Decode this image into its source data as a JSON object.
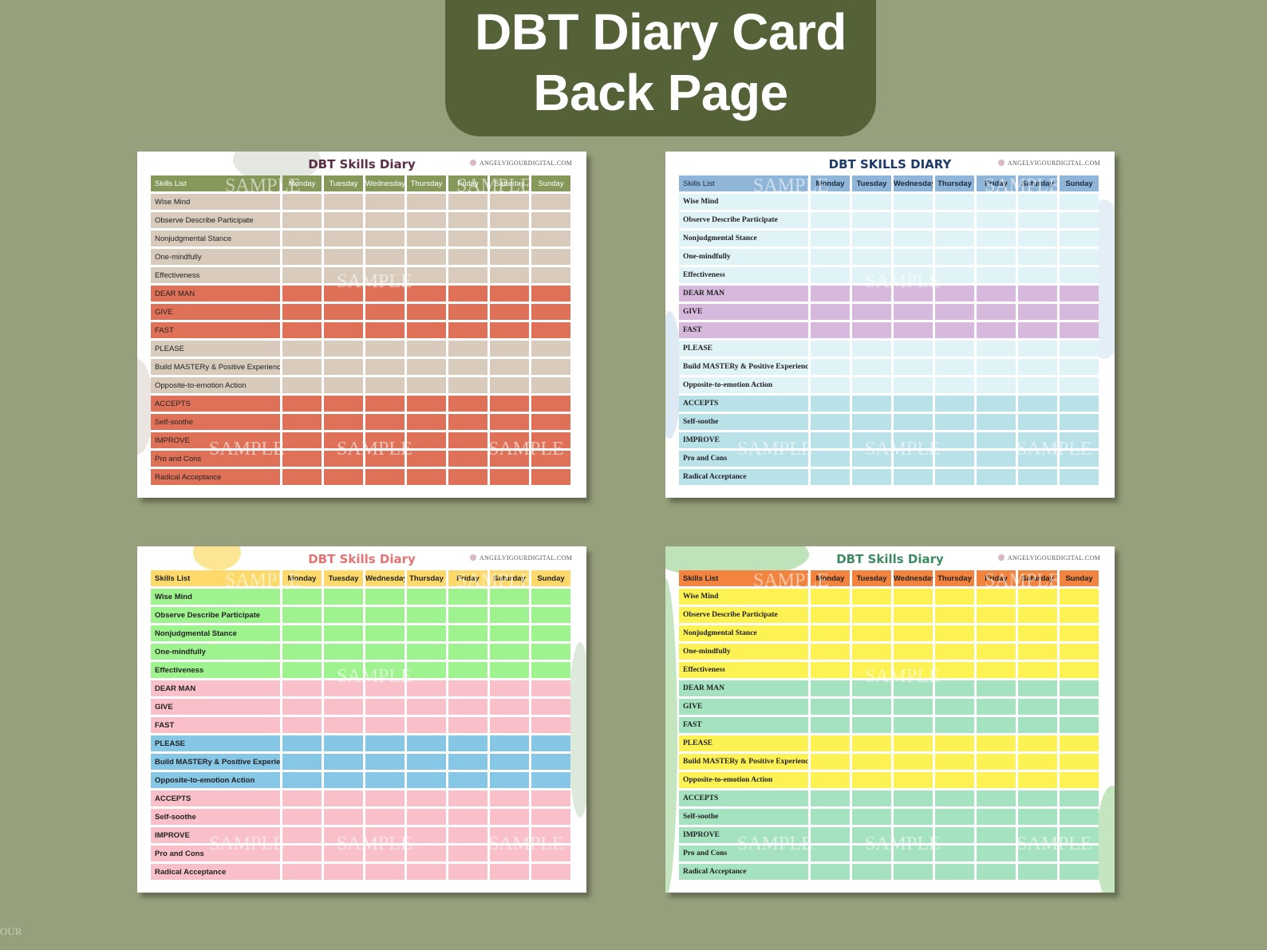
{
  "banner": {
    "line1": "DBT Diary Card",
    "line2": "Back Page"
  },
  "corner_text": "OUR",
  "days": [
    "Monday",
    "Tuesday",
    "Wednesday",
    "Thursday",
    "Friday",
    "Saturday",
    "Sunday"
  ],
  "skills_header": "Skills List",
  "skills": [
    "Wise Mind",
    "Observe    Describe    Participate",
    "Nonjudgmental Stance",
    "One-mindfully",
    "Effectiveness",
    "DEAR MAN",
    "GIVE",
    "FAST",
    "PLEASE",
    "Build MASTERy & Positive Experiences",
    "Opposite-to-emotion Action",
    "ACCEPTS",
    "Self-soothe",
    "IMPROVE",
    "Pro and Cons",
    "Radical Acceptance"
  ],
  "cards": [
    {
      "title": "DBT Skills Diary",
      "site": "ANGELVIGOURDIGITAL.COM",
      "title_color": "#5a2f45",
      "header_color": "#86995a",
      "header_text_color": "#ffffff",
      "group_colors": [
        "#d9cbbb",
        "#de7158",
        "#d9cbbb",
        "#de7158"
      ],
      "watermark": "SAMPLE"
    },
    {
      "title": "DBT SKILLS DIARY",
      "site": "ANGELVIGOURDIGITAL.COM",
      "title_color": "#1e3c6a",
      "header_color": "#8fb6d8",
      "header_text_color": "#1b2a3a",
      "group_colors": [
        "#e0f3f7",
        "#d6b9dc",
        "#e0f3f7",
        "#b9e1e8"
      ],
      "watermark": "SAMPLE"
    },
    {
      "title": "DBT Skills Diary",
      "site": "ANGELVIGOURDIGITAL.COM",
      "title_color": "#e57373",
      "header_color": "#fcd96a",
      "header_text_color": "#222222",
      "group_colors": [
        "#9ff38f",
        "#f9c0ca",
        "#86c7e6",
        "#f9c0ca"
      ],
      "watermark": "SAMPLE"
    },
    {
      "title": "DBT Skills Diary",
      "site": "ANGELVIGOURDIGITAL.COM",
      "title_color": "#3f8a63",
      "header_color": "#f2843f",
      "header_text_color": "#222222",
      "group_colors": [
        "#fdf254",
        "#a5e2c0",
        "#fdf254",
        "#a5e2c0"
      ],
      "watermark": "SAMPLE"
    }
  ]
}
